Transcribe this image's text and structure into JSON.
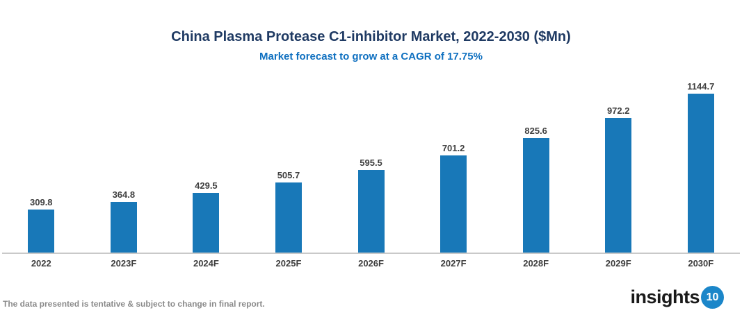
{
  "header": {
    "title": "China Plasma Protease C1-inhibitor Market, 2022-2030 ($Mn)",
    "subtitle": "Market forecast to grow at a CAGR of 17.75%"
  },
  "chart_data": {
    "type": "bar",
    "categories": [
      "2022",
      "2023F",
      "2024F",
      "2025F",
      "2026F",
      "2027F",
      "2028F",
      "2029F",
      "2030F"
    ],
    "values": [
      309.8,
      364.8,
      429.5,
      505.7,
      595.5,
      701.2,
      825.6,
      972.2,
      1144.7
    ],
    "title": "China Plasma Protease C1-inhibitor Market, 2022-2030 ($Mn)",
    "subtitle": "Market forecast to grow at a CAGR of 17.75%",
    "xlabel": "",
    "ylabel": "",
    "ylim": [
      0,
      1200
    ],
    "grid": false,
    "legend": false,
    "value_labels_shown": true,
    "colors": {
      "bar": "#1878b8",
      "title": "#1f3a63",
      "subtitle": "#0f70c0",
      "value_label": "#404040",
      "axis_line": "#c9c9c9"
    }
  },
  "footer": {
    "note": "The data presented is tentative & subject to change in final report.",
    "logo": {
      "text": "insights",
      "badge": "10",
      "badge_color": "#1b86c9"
    }
  }
}
